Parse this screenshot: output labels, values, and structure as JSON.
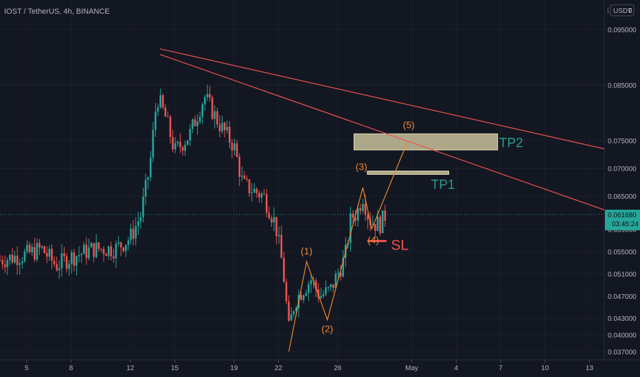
{
  "header": {
    "symbol_line": "IOST / TetherUS, 4h, BINANCE"
  },
  "price_axis": {
    "currency": "USDT",
    "currency_zero": "0"
  },
  "current_price": {
    "value": 0.06168,
    "label": "0.061680",
    "countdown": "03:45:24",
    "color": "#26a69a"
  },
  "colors": {
    "bull": "#26a69a",
    "bear": "#ef5350",
    "trendline": "#ef5350",
    "wave": "#f0882c",
    "zone": "#c8c19a",
    "background": "#131722"
  },
  "chart_data": {
    "type": "candlestick",
    "interval": "4h",
    "ylim": [
      0.0355,
      0.1003
    ],
    "y_ticks": [
      {
        "value": 0.095,
        "label": "0.095000"
      },
      {
        "value": 0.085,
        "label": "0.085000"
      },
      {
        "value": 0.075,
        "label": "0.075000"
      },
      {
        "value": 0.07,
        "label": "0.070000"
      },
      {
        "value": 0.065,
        "label": "0.065000"
      },
      {
        "value": 0.059,
        "label": "0.059000"
      },
      {
        "value": 0.055,
        "label": "0.055000"
      },
      {
        "value": 0.051,
        "label": "0.051000"
      },
      {
        "value": 0.047,
        "label": "0.047000"
      },
      {
        "value": 0.043,
        "label": "0.043000"
      },
      {
        "value": 0.04,
        "label": "0.040000"
      },
      {
        "value": 0.037,
        "label": "0.037000"
      }
    ],
    "x_range_days": [
      3.2,
      44.0
    ],
    "x_ticks": [
      {
        "day": 5,
        "label": "5"
      },
      {
        "day": 8,
        "label": "8"
      },
      {
        "day": 12,
        "label": "12"
      },
      {
        "day": 15,
        "label": "15"
      },
      {
        "day": 19,
        "label": "19"
      },
      {
        "day": 22,
        "label": "22"
      },
      {
        "day": 26,
        "label": "26"
      },
      {
        "day": 31,
        "label": "May"
      },
      {
        "day": 34,
        "label": "4"
      },
      {
        "day": 37,
        "label": "7"
      },
      {
        "day": 40,
        "label": "10"
      },
      {
        "day": 43,
        "label": "13"
      }
    ],
    "price_path_days": [
      3.2,
      5.0,
      6.0,
      7.0,
      8.0,
      9.5,
      11.0,
      12.0,
      12.7,
      13.3,
      13.8,
      14.4,
      15.0,
      16.0,
      17.0,
      18.0,
      19.0,
      19.6,
      20.3,
      21.0,
      21.8,
      22.3,
      22.7,
      23.1,
      23.6,
      24.2,
      24.8,
      25.5,
      26.0,
      26.5,
      26.9,
      27.3,
      27.7,
      28.1,
      28.5,
      28.9,
      29.2
    ],
    "price_path_values": [
      0.0535,
      0.0545,
      0.0555,
      0.0525,
      0.054,
      0.0555,
      0.0555,
      0.0575,
      0.0615,
      0.07,
      0.083,
      0.079,
      0.073,
      0.076,
      0.083,
      0.078,
      0.074,
      0.067,
      0.066,
      0.065,
      0.06,
      0.052,
      0.041,
      0.046,
      0.048,
      0.05,
      0.047,
      0.048,
      0.051,
      0.054,
      0.061,
      0.062,
      0.065,
      0.061,
      0.06,
      0.06,
      0.0615
    ],
    "trendlines": [
      {
        "from": {
          "day": 14.0,
          "price": 0.0915
        },
        "to": {
          "day": 44.0,
          "price": 0.0735
        }
      },
      {
        "from": {
          "day": 14.0,
          "price": 0.0905
        },
        "to": {
          "day": 44.0,
          "price": 0.0625
        }
      }
    ],
    "zones": [
      {
        "label": "TP2",
        "day_start": 27.1,
        "day_end": 36.8,
        "price_low": 0.0733,
        "price_high": 0.0762
      },
      {
        "label": "TP1",
        "day_start": 28.0,
        "day_end": 33.5,
        "price_low": 0.0689,
        "price_high": 0.0695
      }
    ],
    "stop_loss": {
      "label": "SL",
      "day_start": 28.0,
      "day_end": 29.3,
      "price": 0.0569
    },
    "elliott_waves": {
      "points": [
        {
          "day": 22.7,
          "price": 0.037
        },
        {
          "day": 23.9,
          "price": 0.0532
        },
        {
          "day": 25.3,
          "price": 0.0427
        },
        {
          "day": 27.7,
          "price": 0.0665
        },
        {
          "day": 28.3,
          "price": 0.0591
        },
        {
          "day": 30.7,
          "price": 0.0747
        }
      ],
      "labels": [
        {
          "text": "(1)",
          "day": 23.9,
          "price": 0.0545
        },
        {
          "text": "(2)",
          "day": 25.3,
          "price": 0.0405
        },
        {
          "text": "(3)",
          "day": 27.6,
          "price": 0.0697
        },
        {
          "text": "(4)",
          "day": 28.4,
          "price": 0.0565
        },
        {
          "text": "(5)",
          "day": 30.8,
          "price": 0.0772
        }
      ]
    },
    "annotations": [
      {
        "text": "TP2",
        "day": 36.9,
        "price": 0.0738
      },
      {
        "text": "TP1",
        "day": 32.3,
        "price": 0.0663
      },
      {
        "text": "SL",
        "day": 29.6,
        "price": 0.0553
      }
    ]
  }
}
